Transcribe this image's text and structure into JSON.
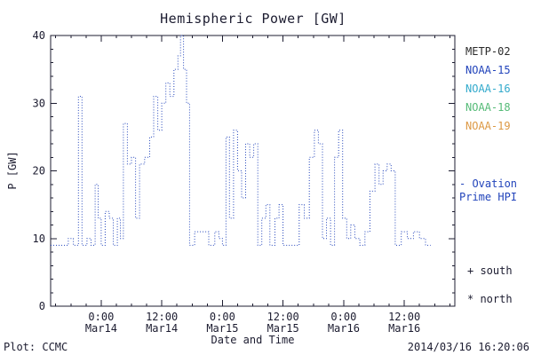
{
  "title": "Hemispheric Power [GW]",
  "axes": {
    "ylabel": "P [GW]",
    "xlabel": "Date and Time",
    "ylim": [
      0,
      40
    ],
    "yticks": [
      0,
      10,
      20,
      30,
      40
    ],
    "y_minor_step": 2,
    "xlim": [
      0,
      80
    ],
    "x_minor_step": 3,
    "xticks": [
      {
        "t": 10,
        "time": "0:00",
        "date": "Mar14"
      },
      {
        "t": 22,
        "time": "12:00",
        "date": "Mar14"
      },
      {
        "t": 34,
        "time": "0:00",
        "date": "Mar15"
      },
      {
        "t": 46,
        "time": "12:00",
        "date": "Mar15"
      },
      {
        "t": 58,
        "time": "0:00",
        "date": "Mar16"
      },
      {
        "t": 70,
        "time": "12:00",
        "date": "Mar16"
      }
    ]
  },
  "legend": {
    "satellites": [
      {
        "label": "METP-02",
        "color": "#2a2a2a"
      },
      {
        "label": "NOAA-15",
        "color": "#2244bb"
      },
      {
        "label": "NOAA-16",
        "color": "#33aacc"
      },
      {
        "label": "NOAA-18",
        "color": "#55bb77"
      },
      {
        "label": "NOAA-19",
        "color": "#dd9944"
      }
    ],
    "ovation_line1": "- Ovation",
    "ovation_line2": "Prime HPI",
    "ovation_color": "#2244bb",
    "south_label": "+ south",
    "north_label": "* north"
  },
  "footer": {
    "left": "Plot: CCMC",
    "right": "2014/03/16 16:20:06"
  },
  "chart_data": {
    "type": "line",
    "step": true,
    "line_style": "dotted",
    "color": "#2244bb",
    "title": "Hemispheric Power [GW]",
    "xlabel": "Date and Time",
    "ylabel": "P [GW]",
    "ylim": [
      0,
      40
    ],
    "x_unit": "hours from axis start (axis start = 10 h before 0:00 Mar14)",
    "points": [
      [
        0,
        9
      ],
      [
        3.5,
        10
      ],
      [
        4.5,
        9
      ],
      [
        5.5,
        31
      ],
      [
        6.2,
        9
      ],
      [
        7.2,
        10
      ],
      [
        8,
        9
      ],
      [
        8.8,
        18
      ],
      [
        9.4,
        13
      ],
      [
        10,
        9
      ],
      [
        10.8,
        14
      ],
      [
        11.6,
        13
      ],
      [
        12.4,
        9
      ],
      [
        13.2,
        13
      ],
      [
        13.8,
        10
      ],
      [
        14.4,
        27
      ],
      [
        15.2,
        21
      ],
      [
        16,
        22
      ],
      [
        16.8,
        13
      ],
      [
        17.6,
        21
      ],
      [
        18.6,
        22
      ],
      [
        19.6,
        25
      ],
      [
        20.4,
        31
      ],
      [
        21.2,
        26
      ],
      [
        22,
        30
      ],
      [
        22.8,
        33
      ],
      [
        23.6,
        31
      ],
      [
        24.4,
        35
      ],
      [
        25.2,
        37
      ],
      [
        25.7,
        40
      ],
      [
        26.3,
        35
      ],
      [
        26.9,
        30
      ],
      [
        27.5,
        9
      ],
      [
        28.5,
        11
      ],
      [
        31.3,
        9
      ],
      [
        32.5,
        11
      ],
      [
        33.3,
        10
      ],
      [
        34,
        9
      ],
      [
        34.7,
        25
      ],
      [
        35.4,
        13
      ],
      [
        36.2,
        26
      ],
      [
        37,
        20
      ],
      [
        37.8,
        16
      ],
      [
        38.6,
        24
      ],
      [
        39.4,
        22
      ],
      [
        40.2,
        24
      ],
      [
        41,
        9
      ],
      [
        41.8,
        13
      ],
      [
        42.6,
        15
      ],
      [
        43.4,
        9
      ],
      [
        44.4,
        13
      ],
      [
        45.2,
        15
      ],
      [
        46,
        9
      ],
      [
        48.2,
        9
      ],
      [
        49.2,
        15
      ],
      [
        50.2,
        13
      ],
      [
        51.2,
        22
      ],
      [
        52.2,
        26
      ],
      [
        53,
        24
      ],
      [
        53.8,
        10
      ],
      [
        54.6,
        13
      ],
      [
        55.4,
        9
      ],
      [
        56.2,
        22
      ],
      [
        57,
        26
      ],
      [
        57.8,
        13
      ],
      [
        58.6,
        10
      ],
      [
        59.4,
        12
      ],
      [
        60.2,
        10
      ],
      [
        61.2,
        9
      ],
      [
        62.2,
        11
      ],
      [
        63.2,
        17
      ],
      [
        64.2,
        21
      ],
      [
        65,
        18
      ],
      [
        65.8,
        20
      ],
      [
        66.6,
        21
      ],
      [
        67.4,
        20
      ],
      [
        68.2,
        9
      ],
      [
        69.4,
        11
      ],
      [
        70.6,
        10
      ],
      [
        71.8,
        11
      ],
      [
        73,
        10
      ],
      [
        74.2,
        9
      ],
      [
        75.2,
        9
      ]
    ]
  }
}
